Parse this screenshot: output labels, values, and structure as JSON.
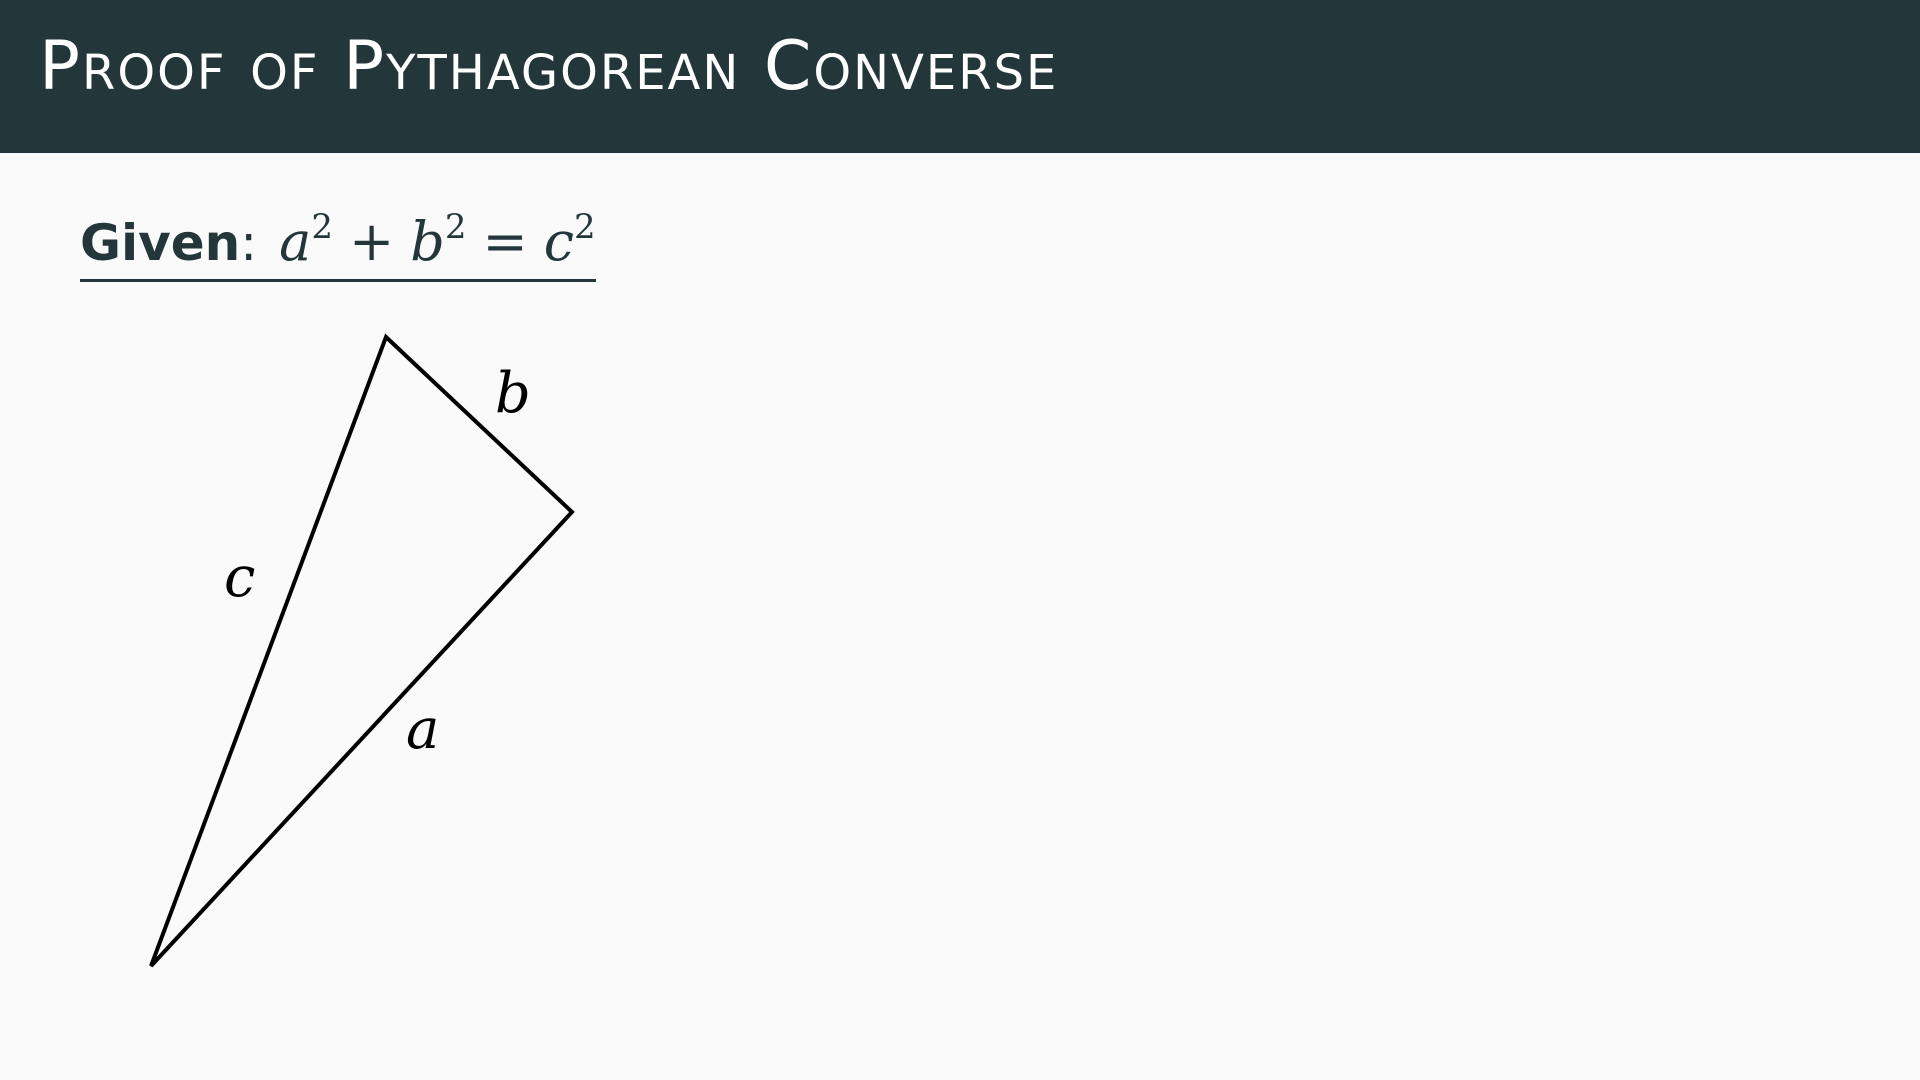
{
  "title": "Proof of Pythagorean Converse",
  "given": {
    "label": "Given",
    "colon": ":",
    "equation": {
      "term1": "a",
      "exp1": "2",
      "op1": "+",
      "term2": "b",
      "exp2": "2",
      "op2": "=",
      "term3": "c",
      "exp3": "2"
    }
  },
  "diagram": {
    "side_labels": {
      "a": "a",
      "b": "b",
      "c": "c"
    }
  },
  "colors": {
    "title_bar": "#23373b",
    "title_text": "#ffffff",
    "background": "#fafafa",
    "triangle_stroke": "#000000"
  }
}
